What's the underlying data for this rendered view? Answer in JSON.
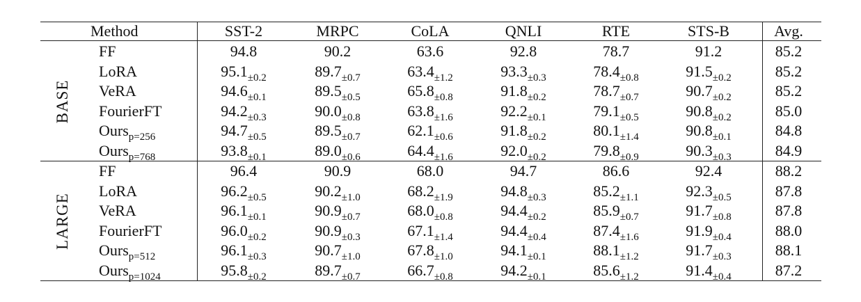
{
  "table": {
    "header": [
      "Method",
      "SST-2",
      "MRPC",
      "CoLA",
      "QNLI",
      "RTE",
      "STS-B",
      "Avg."
    ],
    "groups": [
      {
        "label": "BASE",
        "rows": [
          {
            "method": "FF",
            "cells": [
              {
                "v": "94.8"
              },
              {
                "v": "90.2"
              },
              {
                "v": "63.6"
              },
              {
                "v": "92.8"
              },
              {
                "v": "78.7"
              },
              {
                "v": "91.2"
              }
            ],
            "avg": "85.2"
          },
          {
            "method": "LoRA",
            "cells": [
              {
                "v": "95.1",
                "e": "±0.2"
              },
              {
                "v": "89.7",
                "e": "±0.7"
              },
              {
                "v": "63.4",
                "e": "±1.2"
              },
              {
                "v": "93.3",
                "e": "±0.3"
              },
              {
                "v": "78.4",
                "e": "±0.8"
              },
              {
                "v": "91.5",
                "e": "±0.2"
              }
            ],
            "avg": "85.2"
          },
          {
            "method": "VeRA",
            "cells": [
              {
                "v": "94.6",
                "e": "±0.1"
              },
              {
                "v": "89.5",
                "e": "±0.5"
              },
              {
                "v": "65.8",
                "e": "±0.8"
              },
              {
                "v": "91.8",
                "e": "±0.2"
              },
              {
                "v": "78.7",
                "e": "±0.7"
              },
              {
                "v": "90.7",
                "e": "±0.2"
              }
            ],
            "avg": "85.2"
          },
          {
            "method": "FourierFT",
            "cells": [
              {
                "v": "94.2",
                "e": "±0.3"
              },
              {
                "v": "90.0",
                "e": "±0.8"
              },
              {
                "v": "63.8",
                "e": "±1.6"
              },
              {
                "v": "92.2",
                "e": "±0.1"
              },
              {
                "v": "79.1",
                "e": "±0.5"
              },
              {
                "v": "90.8",
                "e": "±0.2"
              }
            ],
            "avg": "85.0"
          },
          {
            "method": "Ours",
            "method_sub": "p=256",
            "cells": [
              {
                "v": "94.7",
                "e": "±0.5"
              },
              {
                "v": "89.5",
                "e": "±0.7"
              },
              {
                "v": "62.1",
                "e": "±0.6"
              },
              {
                "v": "91.8",
                "e": "±0.2"
              },
              {
                "v": "80.1",
                "e": "±1.4"
              },
              {
                "v": "90.8",
                "e": "±0.1"
              }
            ],
            "avg": "84.8"
          },
          {
            "method": "Ours",
            "method_sub": "p=768",
            "cells": [
              {
                "v": "93.8",
                "e": "±0.1"
              },
              {
                "v": "89.0",
                "e": "±0.6"
              },
              {
                "v": "64.4",
                "e": "±1.6"
              },
              {
                "v": "92.0",
                "e": "±0.2"
              },
              {
                "v": "79.8",
                "e": "±0.9"
              },
              {
                "v": "90.3",
                "e": "±0.3"
              }
            ],
            "avg": "84.9"
          }
        ]
      },
      {
        "label": "LARGE",
        "rows": [
          {
            "method": "FF",
            "cells": [
              {
                "v": "96.4"
              },
              {
                "v": "90.9"
              },
              {
                "v": "68.0"
              },
              {
                "v": "94.7"
              },
              {
                "v": "86.6"
              },
              {
                "v": "92.4"
              }
            ],
            "avg": "88.2"
          },
          {
            "method": "LoRA",
            "cells": [
              {
                "v": "96.2",
                "e": "±0.5"
              },
              {
                "v": "90.2",
                "e": "±1.0"
              },
              {
                "v": "68.2",
                "e": "±1.9"
              },
              {
                "v": "94.8",
                "e": "±0.3"
              },
              {
                "v": "85.2",
                "e": "±1.1"
              },
              {
                "v": "92.3",
                "e": "±0.5"
              }
            ],
            "avg": "87.8"
          },
          {
            "method": "VeRA",
            "cells": [
              {
                "v": "96.1",
                "e": "±0.1"
              },
              {
                "v": "90.9",
                "e": "±0.7"
              },
              {
                "v": "68.0",
                "e": "±0.8"
              },
              {
                "v": "94.4",
                "e": "±0.2"
              },
              {
                "v": "85.9",
                "e": "±0.7"
              },
              {
                "v": "91.7",
                "e": "±0.8"
              }
            ],
            "avg": "87.8"
          },
          {
            "method": "FourierFT",
            "cells": [
              {
                "v": "96.0",
                "e": "±0.2"
              },
              {
                "v": "90.9",
                "e": "±0.3"
              },
              {
                "v": "67.1",
                "e": "±1.4"
              },
              {
                "v": "94.4",
                "e": "±0.4"
              },
              {
                "v": "87.4",
                "e": "±1.6"
              },
              {
                "v": "91.9",
                "e": "±0.4"
              }
            ],
            "avg": "88.0"
          },
          {
            "method": "Ours",
            "method_sub": "p=512",
            "cells": [
              {
                "v": "96.1",
                "e": "±0.3"
              },
              {
                "v": "90.7",
                "e": "±1.0"
              },
              {
                "v": "67.8",
                "e": "±1.0"
              },
              {
                "v": "94.1",
                "e": "±0.1"
              },
              {
                "v": "88.1",
                "e": "±1.2"
              },
              {
                "v": "91.7",
                "e": "±0.3"
              }
            ],
            "avg": "88.1"
          },
          {
            "method": "Ours",
            "method_sub": "p=1024",
            "cells": [
              {
                "v": "95.8",
                "e": "±0.2"
              },
              {
                "v": "89.7",
                "e": "±0.7"
              },
              {
                "v": "66.7",
                "e": "±0.8"
              },
              {
                "v": "94.2",
                "e": "±0.1"
              },
              {
                "v": "85.6",
                "e": "±1.2"
              },
              {
                "v": "91.4",
                "e": "±0.4"
              }
            ],
            "avg": "87.2"
          }
        ]
      }
    ]
  }
}
